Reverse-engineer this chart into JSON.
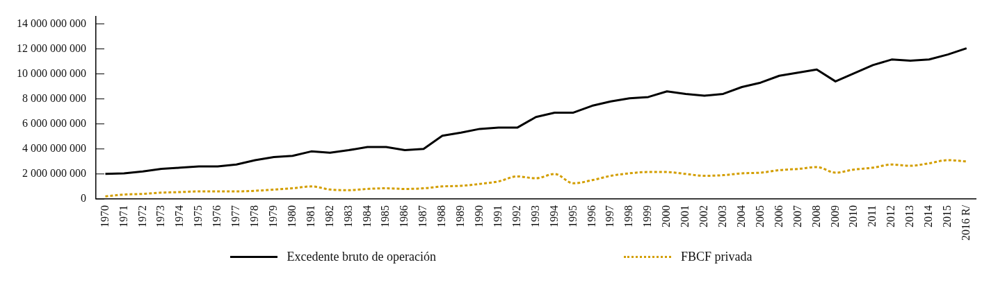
{
  "chart_data": {
    "type": "line",
    "categories": [
      "1970",
      "1971",
      "1972",
      "1973",
      "1974",
      "1975",
      "1976",
      "1977",
      "1978",
      "1979",
      "1980",
      "1981",
      "1982",
      "1983",
      "1984",
      "1985",
      "1986",
      "1987",
      "1988",
      "1989",
      "1990",
      "1991",
      "1992",
      "1993",
      "1994",
      "1995",
      "1996",
      "1997",
      "1998",
      "1999",
      "2000",
      "2001",
      "2002",
      "2003",
      "2004",
      "2005",
      "2006",
      "2007",
      "2008",
      "2009",
      "2010",
      "2011",
      "2012",
      "2013",
      "2014",
      "2015",
      "2016 R/"
    ],
    "series": [
      {
        "name": "Excedente bruto de operación",
        "color": "#000000",
        "line_style": "solid",
        "values": [
          2000000000,
          2050000000,
          2200000000,
          2400000000,
          2500000000,
          2600000000,
          2600000000,
          2750000000,
          3100000000,
          3350000000,
          3450000000,
          3800000000,
          3700000000,
          3900000000,
          4150000000,
          4150000000,
          3900000000,
          4000000000,
          5050000000,
          5300000000,
          5600000000,
          5700000000,
          5700000000,
          6550000000,
          6900000000,
          6900000000,
          7450000000,
          7800000000,
          8050000000,
          8150000000,
          8600000000,
          8400000000,
          8250000000,
          8400000000,
          8950000000,
          9300000000,
          9850000000,
          10100000000,
          10350000000,
          9400000000,
          10050000000,
          10700000000,
          11150000000,
          11050000000,
          11150000000,
          11550000000,
          12050000000
        ]
      },
      {
        "name": "FBCF privada",
        "color": "#d39e00",
        "line_style": "dotted",
        "values": [
          200000000,
          350000000,
          400000000,
          500000000,
          550000000,
          600000000,
          600000000,
          600000000,
          650000000,
          750000000,
          850000000,
          1000000000,
          750000000,
          700000000,
          800000000,
          850000000,
          800000000,
          850000000,
          1000000000,
          1050000000,
          1200000000,
          1400000000,
          1800000000,
          1650000000,
          2000000000,
          1250000000,
          1500000000,
          1850000000,
          2050000000,
          2150000000,
          2150000000,
          2000000000,
          1850000000,
          1900000000,
          2050000000,
          2100000000,
          2300000000,
          2400000000,
          2550000000,
          2100000000,
          2350000000,
          2500000000,
          2750000000,
          2650000000,
          2850000000,
          3100000000,
          3000000000
        ]
      }
    ],
    "ylim": [
      0,
      14600000000
    ],
    "yticks": [
      {
        "value": 0,
        "label": "0"
      },
      {
        "value": 2000000000,
        "label": "2 000 000 000"
      },
      {
        "value": 4000000000,
        "label": "4 000 000 000"
      },
      {
        "value": 6000000000,
        "label": "6 000 000 000"
      },
      {
        "value": 8000000000,
        "label": "8 000 000 000"
      },
      {
        "value": 10000000000,
        "label": "10 000 000 000"
      },
      {
        "value": 12000000000,
        "label": "12 000 000 000"
      },
      {
        "value": 14000000000,
        "label": "14 000 000 000"
      }
    ],
    "grid": false,
    "legend": "bottom",
    "marker": "none"
  }
}
